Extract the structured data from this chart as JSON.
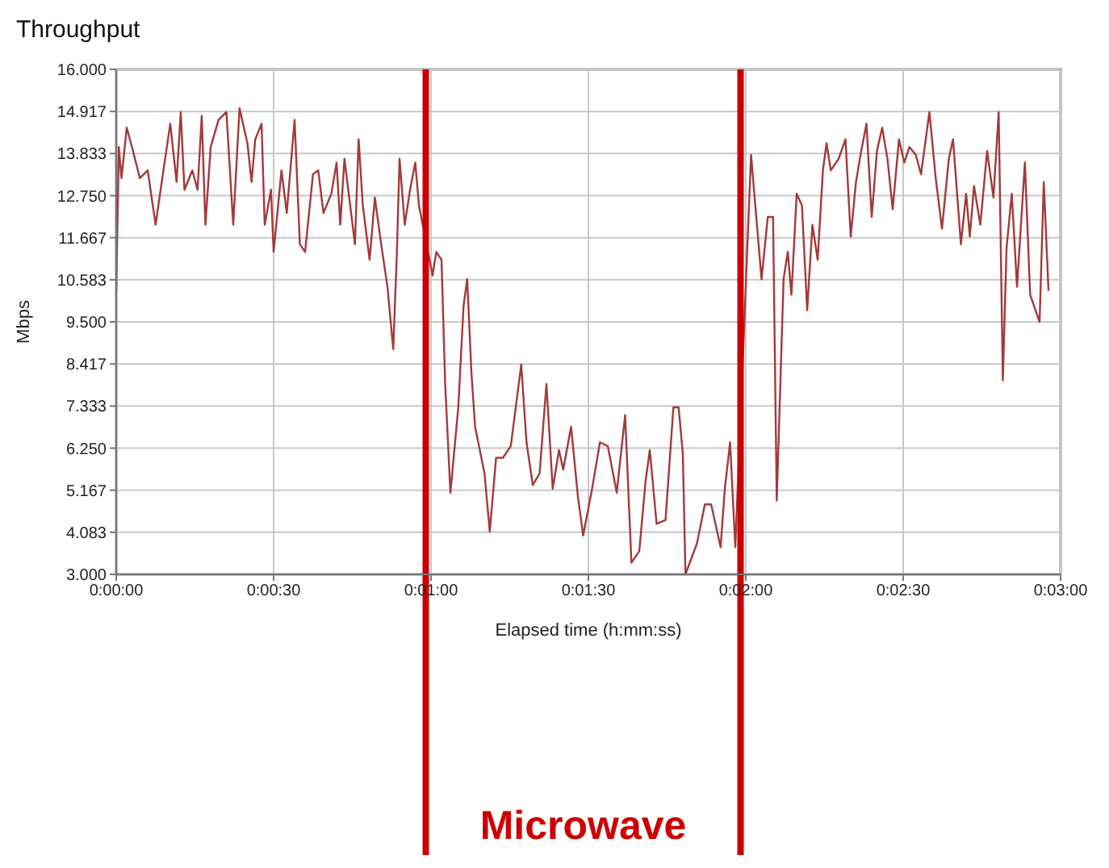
{
  "chart_data": {
    "type": "line",
    "title": "Throughput",
    "xlabel": "Elapsed time (h:mm:ss)",
    "ylabel": "Mbps",
    "xlim": [
      0,
      180
    ],
    "xticks": [
      {
        "value": 0,
        "label": "0:00:00"
      },
      {
        "value": 30,
        "label": "0:00:30"
      },
      {
        "value": 60,
        "label": "0:01:00"
      },
      {
        "value": 90,
        "label": "0:01:30"
      },
      {
        "value": 120,
        "label": "0:02:00"
      },
      {
        "value": 150,
        "label": "0:02:30"
      },
      {
        "value": 180,
        "label": "0:03:00"
      }
    ],
    "ylim": [
      3,
      16
    ],
    "yticks": [
      {
        "value": 3,
        "label": "3.000"
      },
      {
        "value": 4.083,
        "label": "4.083"
      },
      {
        "value": 5.167,
        "label": "5.167"
      },
      {
        "value": 6.25,
        "label": "6.250"
      },
      {
        "value": 7.333,
        "label": "7.333"
      },
      {
        "value": 8.417,
        "label": "8.417"
      },
      {
        "value": 9.5,
        "label": "9.500"
      },
      {
        "value": 10.583,
        "label": "10.583"
      },
      {
        "value": 11.667,
        "label": "11.667"
      },
      {
        "value": 12.75,
        "label": "12.750"
      },
      {
        "value": 13.833,
        "label": "13.833"
      },
      {
        "value": 14.917,
        "label": "14.917"
      },
      {
        "value": 16,
        "label": "16.000"
      }
    ],
    "grid": true,
    "legend": false,
    "marker": "none",
    "line_style": "solid",
    "ref_lines": [
      {
        "axis": "x",
        "value": 59,
        "color": "#cc0000"
      },
      {
        "axis": "x",
        "value": 119,
        "color": "#cc0000"
      }
    ],
    "annotations": [
      "Microwave"
    ],
    "series": [
      {
        "color": "#a33a3a",
        "x": [
          0,
          0.5,
          1,
          2,
          3,
          4.5,
          6,
          7.5,
          9,
          10.3,
          11.5,
          12.3,
          13,
          14.5,
          15.5,
          16.3,
          17,
          18,
          19.5,
          21,
          22.3,
          23.5,
          25,
          25.8,
          26.5,
          27.7,
          28.3,
          29.5,
          30,
          31.5,
          32.5,
          34,
          35,
          36,
          37.5,
          38.5,
          39.5,
          41,
          42,
          42.7,
          43.5,
          44.5,
          45.5,
          46.2,
          47,
          48.3,
          49.3,
          50.5,
          51.7,
          52.8,
          53.5,
          54,
          55,
          56,
          57,
          57.7,
          60.3,
          61,
          62,
          62.7,
          63.7,
          65.2,
          66.2,
          66.9,
          67.7,
          68.4,
          70.2,
          71.2,
          72.4,
          73.7,
          75.2,
          77.2,
          78.2,
          79.4,
          80.7,
          82,
          83.2,
          84.4,
          85.2,
          86.7,
          88,
          89,
          90.7,
          92.2,
          93.7,
          95.4,
          97,
          98.2,
          99.7,
          100.9,
          101.7,
          103,
          104.7,
          106.2,
          107.2,
          108,
          108.5,
          110.7,
          112.2,
          113.4,
          115.2,
          116,
          117,
          118,
          121,
          122,
          123,
          124.2,
          125.2,
          125.9,
          127.2,
          128,
          128.7,
          129.7,
          130.7,
          131.7,
          132.7,
          133.7,
          134.7,
          135.4,
          136.2,
          137.7,
          139,
          140,
          141,
          142,
          143,
          144,
          145,
          146,
          147,
          148,
          149.2,
          150.2,
          151.2,
          152.4,
          153.4,
          155,
          156.2,
          157.4,
          158.7,
          159.5,
          161,
          162,
          162.7,
          163.5,
          164.7,
          166,
          167.2,
          168.2,
          169,
          169.7,
          170.7,
          171.7,
          173.2,
          174.2,
          176,
          176.8,
          177.7
        ],
        "values": [
          10.3,
          14,
          13.2,
          14.5,
          14,
          13.2,
          13.4,
          12,
          13.4,
          14.6,
          13.1,
          14.9,
          12.9,
          13.4,
          12.9,
          14.8,
          12,
          14,
          14.7,
          14.9,
          12,
          15,
          14.1,
          13.1,
          14.2,
          14.6,
          12,
          12.9,
          11.3,
          13.4,
          12.3,
          14.7,
          11.5,
          11.3,
          13.3,
          13.4,
          12.3,
          12.8,
          13.6,
          12,
          13.7,
          12.6,
          11.5,
          14.2,
          12.5,
          11.1,
          12.7,
          11.5,
          10.4,
          8.8,
          11.3,
          13.7,
          12,
          12.9,
          13.6,
          12.5,
          10.7,
          11.3,
          11.1,
          7.9,
          5.1,
          7.3,
          9.9,
          10.6,
          8.2,
          6.8,
          5.6,
          4.1,
          6,
          6,
          6.3,
          8.4,
          6.4,
          5.3,
          5.6,
          7.9,
          5.2,
          6.2,
          5.7,
          6.8,
          5,
          4,
          5.2,
          6.4,
          6.3,
          5.1,
          7.1,
          3.3,
          3.6,
          5.4,
          6.2,
          4.3,
          4.4,
          7.3,
          7.3,
          6.1,
          3,
          3.8,
          4.8,
          4.8,
          3.7,
          5.2,
          6.4,
          3.7,
          13.8,
          12.2,
          10.6,
          12.2,
          12.2,
          4.9,
          10.6,
          11.3,
          10.2,
          12.8,
          12.5,
          9.8,
          12,
          11.1,
          13.4,
          14.1,
          13.4,
          13.7,
          14.2,
          11.7,
          13.1,
          13.9,
          14.6,
          12.2,
          13.9,
          14.5,
          13.7,
          12.4,
          14.2,
          13.6,
          14,
          13.8,
          13.3,
          14.9,
          13.2,
          11.9,
          13.7,
          14.2,
          11.5,
          12.8,
          11.7,
          13,
          12,
          13.9,
          12.7,
          14.9,
          8,
          11.4,
          12.8,
          10.4,
          13.6,
          10.2,
          9.5,
          13.1,
          10.3
        ]
      }
    ]
  }
}
